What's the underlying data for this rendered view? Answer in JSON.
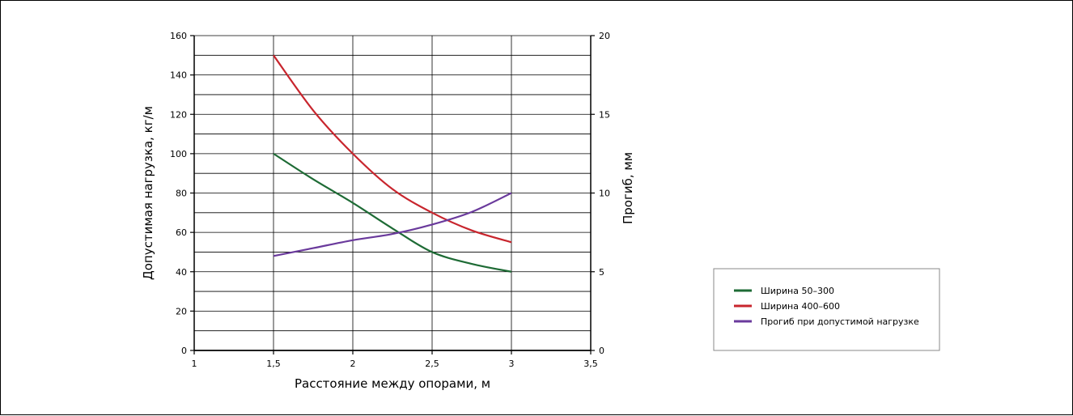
{
  "chart_data": {
    "type": "line",
    "title": "",
    "xlabel": "Расстояние между опорами, м",
    "ylabel_left": "Допустимая нагрузка, кг/м",
    "ylabel_right": "Прогиб, мм",
    "xlim": [
      1,
      3.5
    ],
    "ylim_left": [
      0,
      160
    ],
    "ylim_right": [
      0,
      20
    ],
    "x_ticks": [
      1,
      1.5,
      2,
      2.5,
      3,
      3.5
    ],
    "x_tick_labels": [
      "1",
      "1,5",
      "2",
      "2,5",
      "3",
      "3,5"
    ],
    "y_left_ticks": [
      0,
      20,
      40,
      60,
      80,
      100,
      120,
      140,
      160
    ],
    "y_left_tick_labels": [
      "0",
      "20",
      "40",
      "60",
      "80",
      "100",
      "120",
      "140",
      "160"
    ],
    "y_right_ticks": [
      0,
      5,
      10,
      15,
      20
    ],
    "y_right_tick_labels": [
      "0",
      "5",
      "10",
      "15",
      "20"
    ],
    "grid": true,
    "legend_position": "right",
    "series": [
      {
        "name": "Ширина 50–300",
        "axis": "left",
        "color": "#1e6b35",
        "x": [
          1.5,
          1.75,
          2.0,
          2.25,
          2.5,
          2.75,
          3.0
        ],
        "values": [
          100,
          87,
          75,
          62,
          50,
          44,
          40
        ]
      },
      {
        "name": "Ширина 400–600",
        "axis": "left",
        "color": "#c8252d",
        "x": [
          1.5,
          1.75,
          2.0,
          2.25,
          2.5,
          2.75,
          3.0
        ],
        "values": [
          150,
          122,
          100,
          82,
          70,
          61,
          55
        ]
      },
      {
        "name": "Прогиб при допустимой нагрузке",
        "axis": "right",
        "color": "#6a3a9c",
        "x": [
          1.5,
          1.75,
          2.0,
          2.25,
          2.5,
          2.75,
          3.0
        ],
        "values": [
          6,
          6.5,
          7,
          7.4,
          8,
          8.8,
          10
        ]
      }
    ]
  }
}
